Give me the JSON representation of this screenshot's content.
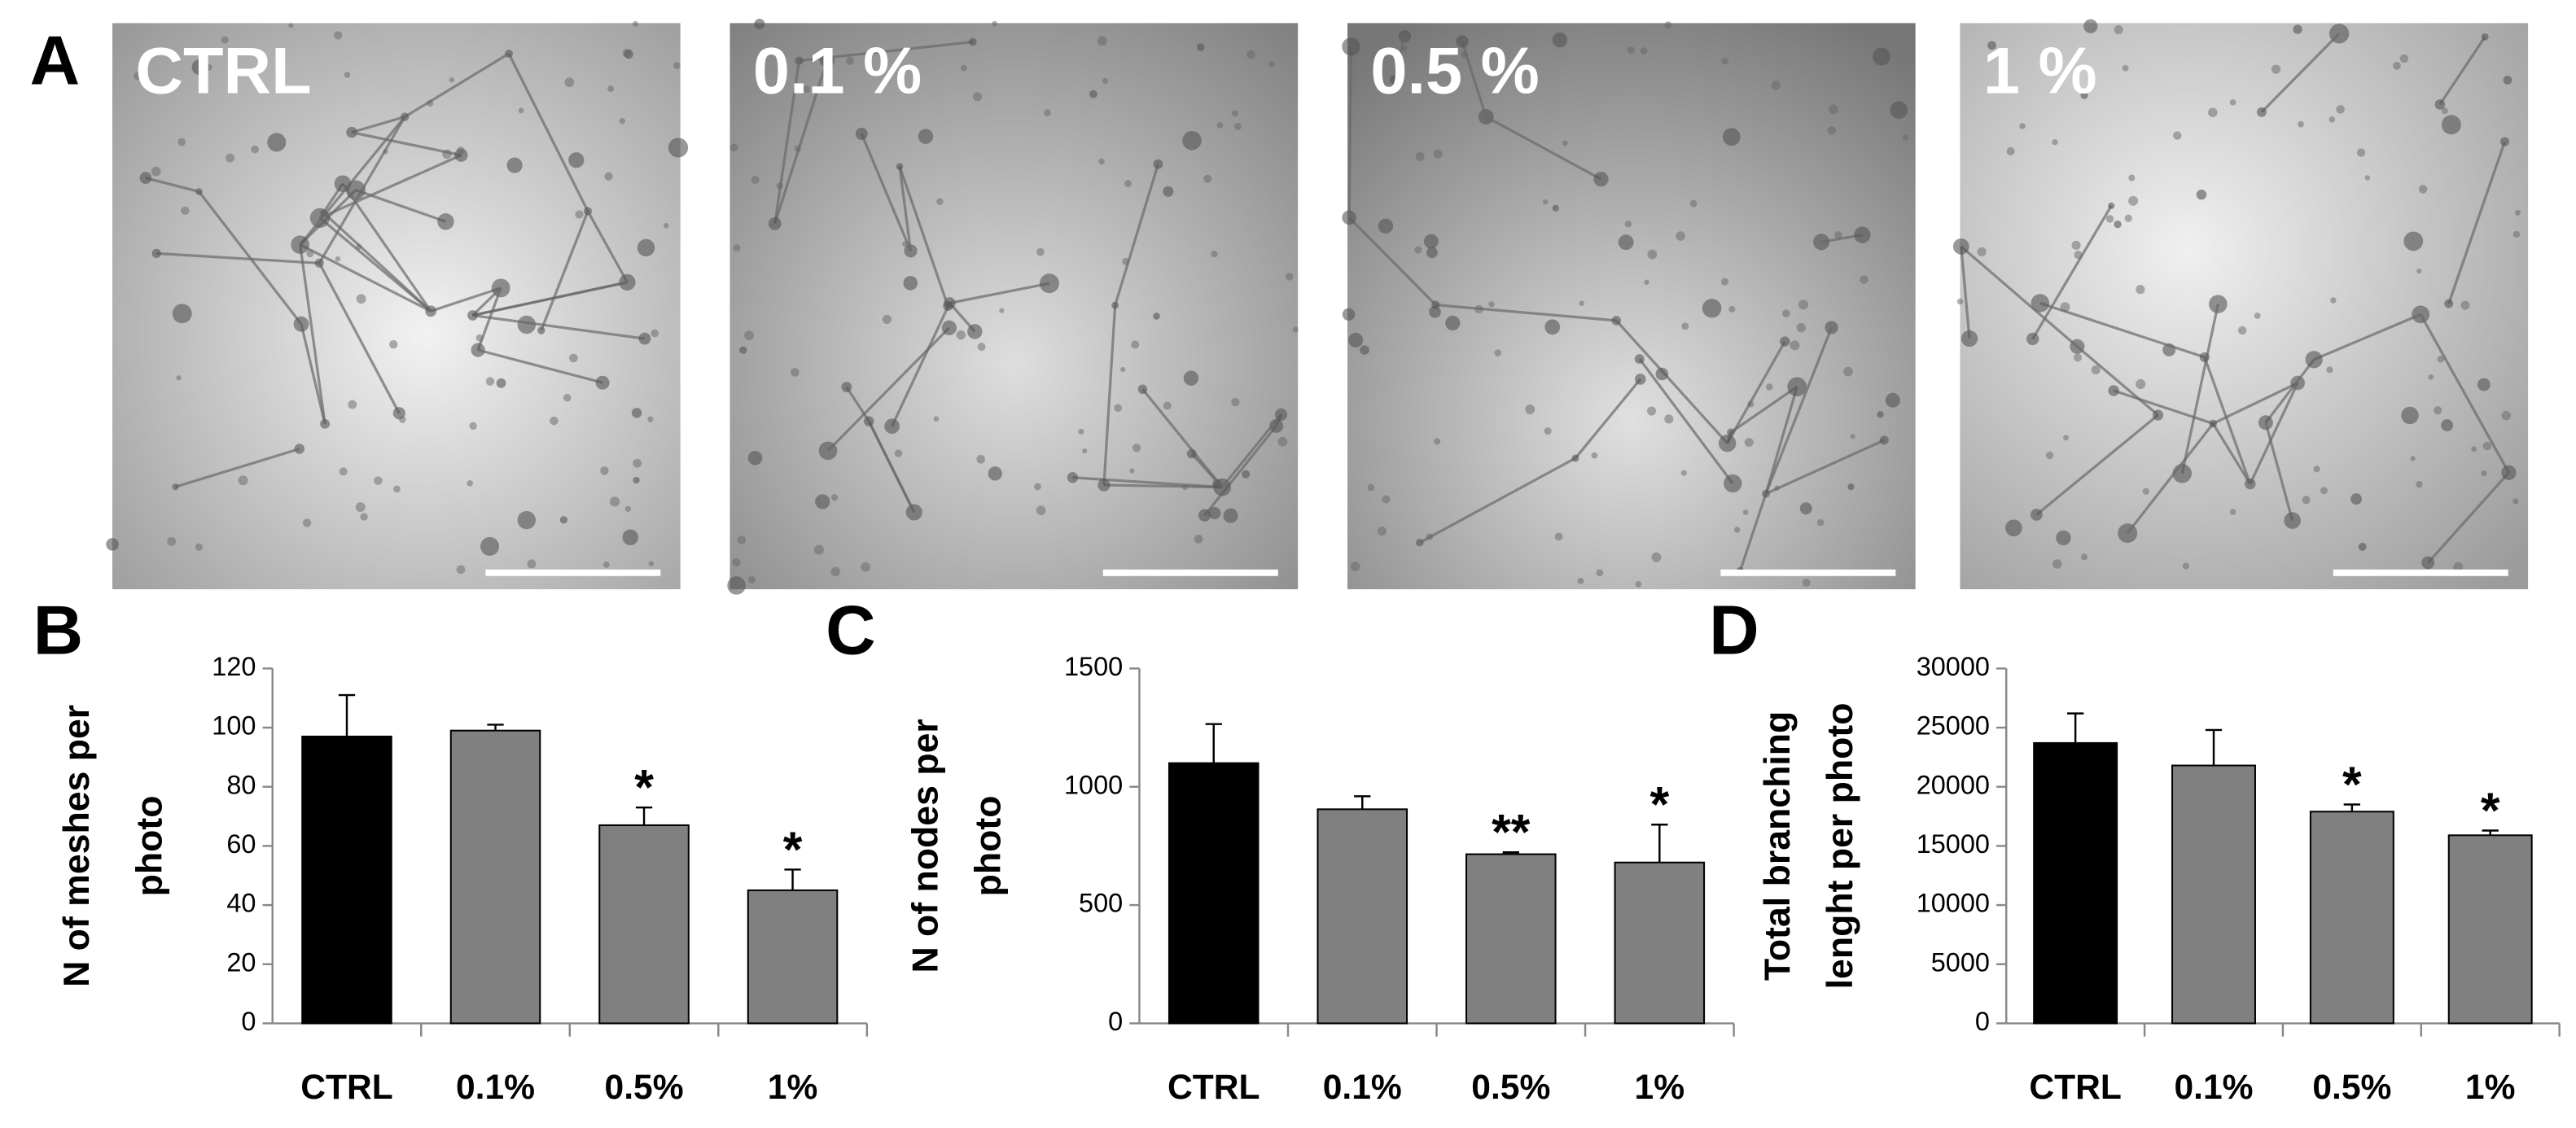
{
  "figure": {
    "panel": "A",
    "images": [
      "CTRL",
      "0.1 %",
      "0.5 %",
      "1 %"
    ]
  },
  "chart_data": [
    {
      "type": "bar",
      "panel": "B",
      "ylabel": [
        "N of meshes per",
        "photo"
      ],
      "categories": [
        "CTRL",
        "0.1%",
        "0.5%",
        "1%"
      ],
      "values": [
        97,
        99,
        67,
        45
      ],
      "errors": [
        14,
        2,
        6,
        7
      ],
      "colors": [
        "#000000",
        "#808080",
        "#808080",
        "#808080"
      ],
      "significance": [
        null,
        null,
        "*",
        "*"
      ],
      "ylim": [
        0,
        120
      ],
      "yticks": [
        0,
        20,
        40,
        60,
        80,
        100,
        120
      ]
    },
    {
      "type": "bar",
      "panel": "C",
      "ylabel": [
        "N of nodes per",
        "photo"
      ],
      "categories": [
        "CTRL",
        "0.1%",
        "0.5%",
        "1%"
      ],
      "values": [
        1100,
        905,
        715,
        680
      ],
      "errors": [
        165,
        55,
        8,
        160
      ],
      "colors": [
        "#000000",
        "#808080",
        "#808080",
        "#808080"
      ],
      "significance": [
        null,
        null,
        "**",
        "*"
      ],
      "ylim": [
        0,
        1500
      ],
      "yticks": [
        0,
        500,
        1000,
        1500
      ]
    },
    {
      "type": "bar",
      "panel": "D",
      "ylabel": [
        "Total branching",
        "lenght per photo"
      ],
      "categories": [
        "CTRL",
        "0.1%",
        "0.5%",
        "1%"
      ],
      "values": [
        23700,
        21800,
        17900,
        15900
      ],
      "errors": [
        2500,
        3000,
        600,
        400
      ],
      "colors": [
        "#000000",
        "#808080",
        "#808080",
        "#808080"
      ],
      "significance": [
        null,
        null,
        "*",
        "*"
      ],
      "ylim": [
        0,
        30000
      ],
      "yticks": [
        0,
        5000,
        10000,
        15000,
        20000,
        25000,
        30000
      ]
    }
  ]
}
